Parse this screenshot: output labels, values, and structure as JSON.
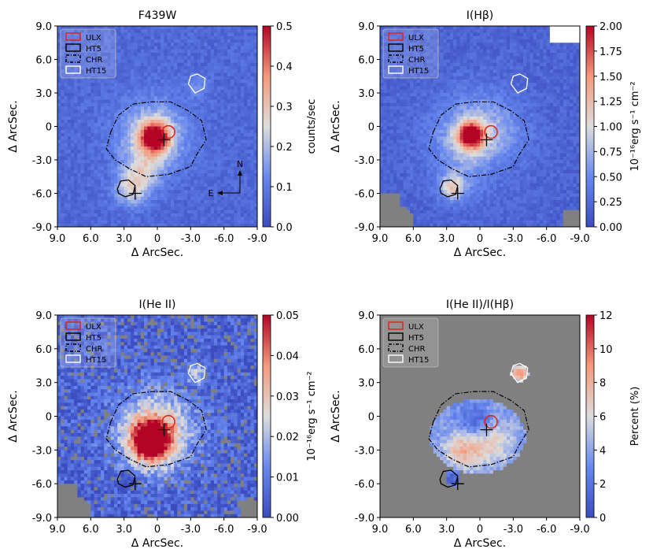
{
  "figure": {
    "arrow_labels": {
      "north": "N",
      "east": "E"
    }
  },
  "chart_data": [
    {
      "type": "heatmap",
      "title": "F439W",
      "xlabel": "Δ ArcSec.",
      "ylabel": "Δ ArcSec.",
      "xlim": [
        9.0,
        -9.0
      ],
      "ylim": [
        -9.0,
        9.0
      ],
      "xticks": [
        "9.0",
        "6.0",
        "3.0",
        "0",
        "-3.0",
        "-6.0",
        "-9.0"
      ],
      "yticks": [
        "9.0",
        "6.0",
        "3.0",
        "0",
        "-3.0",
        "-6.0",
        "-9.0"
      ],
      "colorbar": {
        "label": "counts/sec",
        "range": [
          0.0,
          0.5
        ],
        "ticks": [
          "0.0",
          "0.1",
          "0.2",
          "0.3",
          "0.4",
          "0.5"
        ]
      },
      "legend": {
        "location": "top-left",
        "entries": [
          {
            "label": "ULX",
            "style": "red-solid"
          },
          {
            "label": "HT5",
            "style": "black-solid"
          },
          {
            "label": "CHR",
            "style": "black-dashdot"
          },
          {
            "label": "HT15",
            "style": "white-solid"
          }
        ]
      },
      "sources": [
        {
          "name": "ULX",
          "x": -1.0,
          "y": -0.5
        },
        {
          "name": "HT5 cross",
          "x": 2.0,
          "y": -6.0
        },
        {
          "name": "ULX cross",
          "x": -0.6,
          "y": -1.2
        }
      ],
      "features": {
        "knot_values": [
          0.5,
          0.1,
          0.2
        ],
        "background": 0.1
      },
      "compass": true
    },
    {
      "type": "heatmap",
      "title": "I(Hβ)",
      "xlabel": "Δ ArcSec.",
      "ylabel": "Δ ArcSec.",
      "xlim": [
        9.0,
        -9.0
      ],
      "ylim": [
        -9.0,
        9.0
      ],
      "xticks": [
        "9.0",
        "6.0",
        "3.0",
        "0",
        "-3.0",
        "-6.0",
        "-9.0"
      ],
      "yticks": [
        "9.0",
        "6.0",
        "3.0",
        "0",
        "-3.0",
        "-6.0",
        "-9.0"
      ],
      "colorbar": {
        "label": "10⁻¹⁶erg s⁻¹ cm⁻²",
        "range": [
          0.0,
          2.0
        ],
        "ticks": [
          "0.00",
          "0.25",
          "0.50",
          "0.75",
          "1.00",
          "1.25",
          "1.50",
          "1.75",
          "2.00"
        ]
      },
      "legend": {
        "location": "top-left",
        "entries": [
          {
            "label": "ULX",
            "style": "red-solid"
          },
          {
            "label": "HT5",
            "style": "black-solid"
          },
          {
            "label": "CHR",
            "style": "black-dashdot"
          },
          {
            "label": "HT15",
            "style": "white-solid"
          }
        ]
      },
      "sources": [
        {
          "name": "ULX",
          "x": -1.0,
          "y": -0.5
        },
        {
          "name": "HT5 cross",
          "x": 2.0,
          "y": -6.0
        },
        {
          "name": "ULX cross",
          "x": -0.6,
          "y": -1.2
        }
      ],
      "features": {
        "knot_values": [
          1.9,
          1.0,
          1.0
        ],
        "background": 0.3
      },
      "compass": false
    },
    {
      "type": "heatmap",
      "title": "I(He II)",
      "xlabel": "Δ ArcSec.",
      "ylabel": "Δ ArcSec.",
      "xlim": [
        9.0,
        -9.0
      ],
      "ylim": [
        -9.0,
        9.0
      ],
      "xticks": [
        "9.0",
        "6.0",
        "3.0",
        "0",
        "-3.0",
        "-6.0",
        "-9.0"
      ],
      "yticks": [
        "9.0",
        "6.0",
        "3.0",
        "0",
        "-3.0",
        "-6.0",
        "-9.0"
      ],
      "colorbar": {
        "label": "10⁻¹⁶erg s⁻¹ cm⁻²",
        "range": [
          0.0,
          0.05
        ],
        "ticks": [
          "0.00",
          "0.01",
          "0.02",
          "0.03",
          "0.04",
          "0.05"
        ]
      },
      "legend": {
        "location": "top-left",
        "entries": [
          {
            "label": "ULX",
            "style": "red-solid"
          },
          {
            "label": "HT5",
            "style": "black-solid"
          },
          {
            "label": "CHR",
            "style": "black-dashdot"
          },
          {
            "label": "HT15",
            "style": "white-solid"
          }
        ]
      },
      "sources": [
        {
          "name": "ULX",
          "x": -1.0,
          "y": -0.5
        },
        {
          "name": "HT5 cross",
          "x": 2.0,
          "y": -6.0
        },
        {
          "name": "ULX cross",
          "x": -0.6,
          "y": -1.2
        }
      ],
      "features": {
        "knot_values": [
          0.05,
          0.01,
          0.02
        ],
        "background": 0.005
      },
      "compass": false
    },
    {
      "type": "heatmap",
      "title": "I(He II)/I(Hβ)",
      "xlabel": "Δ ArcSec.",
      "ylabel": "Δ ArcSec.",
      "xlim": [
        9.0,
        -9.0
      ],
      "ylim": [
        -9.0,
        9.0
      ],
      "xticks": [
        "9.0",
        "6.0",
        "3.0",
        "0",
        "-3.0",
        "-6.0",
        "-9.0"
      ],
      "yticks": [
        "9.0",
        "6.0",
        "3.0",
        "0",
        "-3.0",
        "-6.0",
        "-9.0"
      ],
      "colorbar": {
        "label": "Percent (%)",
        "range": [
          0,
          12
        ],
        "ticks": [
          "0",
          "2",
          "4",
          "6",
          "8",
          "10",
          "12"
        ]
      },
      "legend": {
        "location": "top-left",
        "entries": [
          {
            "label": "ULX",
            "style": "red-solid"
          },
          {
            "label": "HT5",
            "style": "black-solid"
          },
          {
            "label": "CHR",
            "style": "black-dashdot"
          },
          {
            "label": "HT15",
            "style": "white-solid"
          }
        ]
      },
      "sources": [
        {
          "name": "ULX",
          "x": -1.0,
          "y": -0.5
        },
        {
          "name": "HT5 cross",
          "x": 2.0,
          "y": -6.0
        },
        {
          "name": "ULX cross",
          "x": -0.6,
          "y": -1.2
        }
      ],
      "features": {
        "knot_values": [
          7.0,
          2.0,
          8.0
        ],
        "background": 3.0
      },
      "compass": false
    }
  ]
}
